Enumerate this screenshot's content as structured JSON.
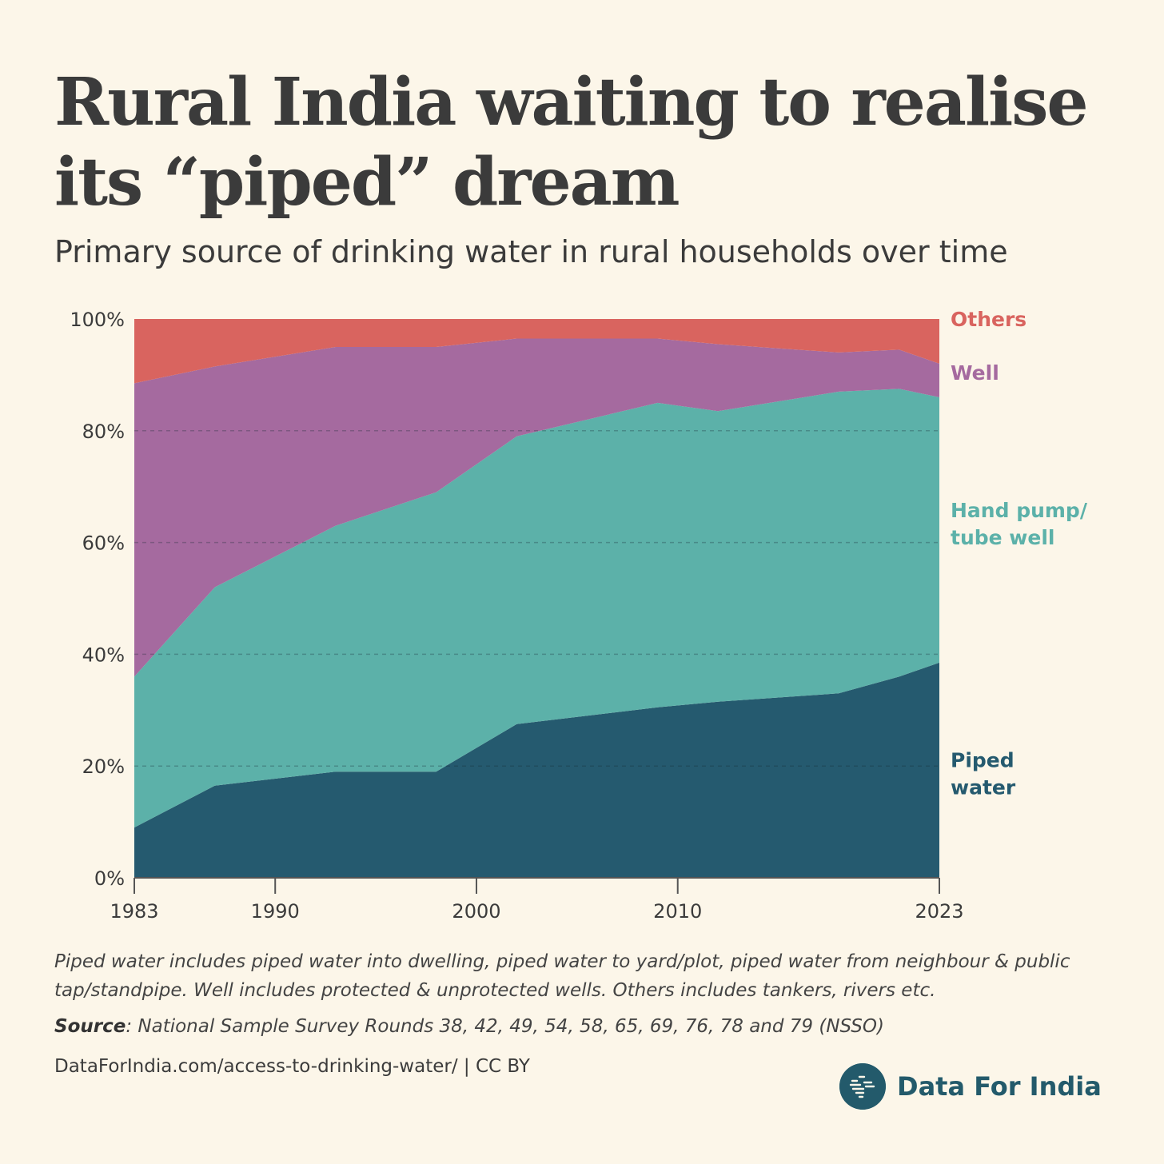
{
  "title": "Rural India waiting to realise its “piped” dream",
  "subtitle": "Primary source of drinking water in rural households over time",
  "chart_data": {
    "type": "area",
    "stacked": true,
    "x": [
      1983,
      1987,
      1993,
      1998,
      2002,
      2009,
      2012,
      2018,
      2021,
      2023
    ],
    "series": [
      {
        "name": "Piped water",
        "label_lines": [
          "Piped",
          "water"
        ],
        "color": "#255a6f",
        "values": [
          9,
          16.5,
          19,
          19,
          27.5,
          30.5,
          31.5,
          33,
          36,
          38.5
        ]
      },
      {
        "name": "Hand pump/ tube well",
        "label_lines": [
          "Hand pump/",
          "tube well"
        ],
        "color": "#5cb1a9",
        "values": [
          27,
          35.5,
          44,
          50,
          51.5,
          54.5,
          52,
          54,
          51.5,
          47.5
        ]
      },
      {
        "name": "Well",
        "label_lines": [
          "Well"
        ],
        "color": "#a56a9f",
        "values": [
          52.5,
          39.5,
          32,
          26,
          17.5,
          11.5,
          12,
          7,
          7,
          6
        ]
      },
      {
        "name": "Others",
        "label_lines": [
          "Others"
        ],
        "color": "#d9645f",
        "values": [
          11.5,
          8.5,
          5,
          5,
          3.5,
          3.5,
          4.5,
          6,
          5.5,
          8
        ]
      }
    ],
    "xticks": [
      1983,
      1990,
      2000,
      2010,
      2023
    ],
    "xtick_labels": [
      "1983",
      "1990",
      "2000",
      "2010",
      "2023"
    ],
    "yticks": [
      0,
      20,
      40,
      60,
      80,
      100
    ],
    "ytick_labels": [
      "0%",
      "20%",
      "40%",
      "60%",
      "80%",
      "100%"
    ],
    "ylim": [
      0,
      100
    ],
    "xlim": [
      1983,
      2023
    ],
    "xlabel": "",
    "ylabel": "",
    "grid": "horizontal dashed"
  },
  "footnote": "Piped water includes piped water into dwelling, piped water to yard/plot, piped water from neighbour & public tap/standpipe. Well includes protected & unprotected wells. Others includes tankers, rivers etc.",
  "source": {
    "label": "Source",
    "text": ": National Sample Survey Rounds 38, 42, 49, 54, 58, 65, 69, 76, 78 and 79 (NSSO)"
  },
  "url_line": "DataForIndia.com/access-to-drinking-water/  |  CC BY",
  "brand": {
    "name": "Data For India",
    "color": "#235a6b"
  },
  "icons": {
    "brand_logo": "india-map-logo-icon"
  }
}
